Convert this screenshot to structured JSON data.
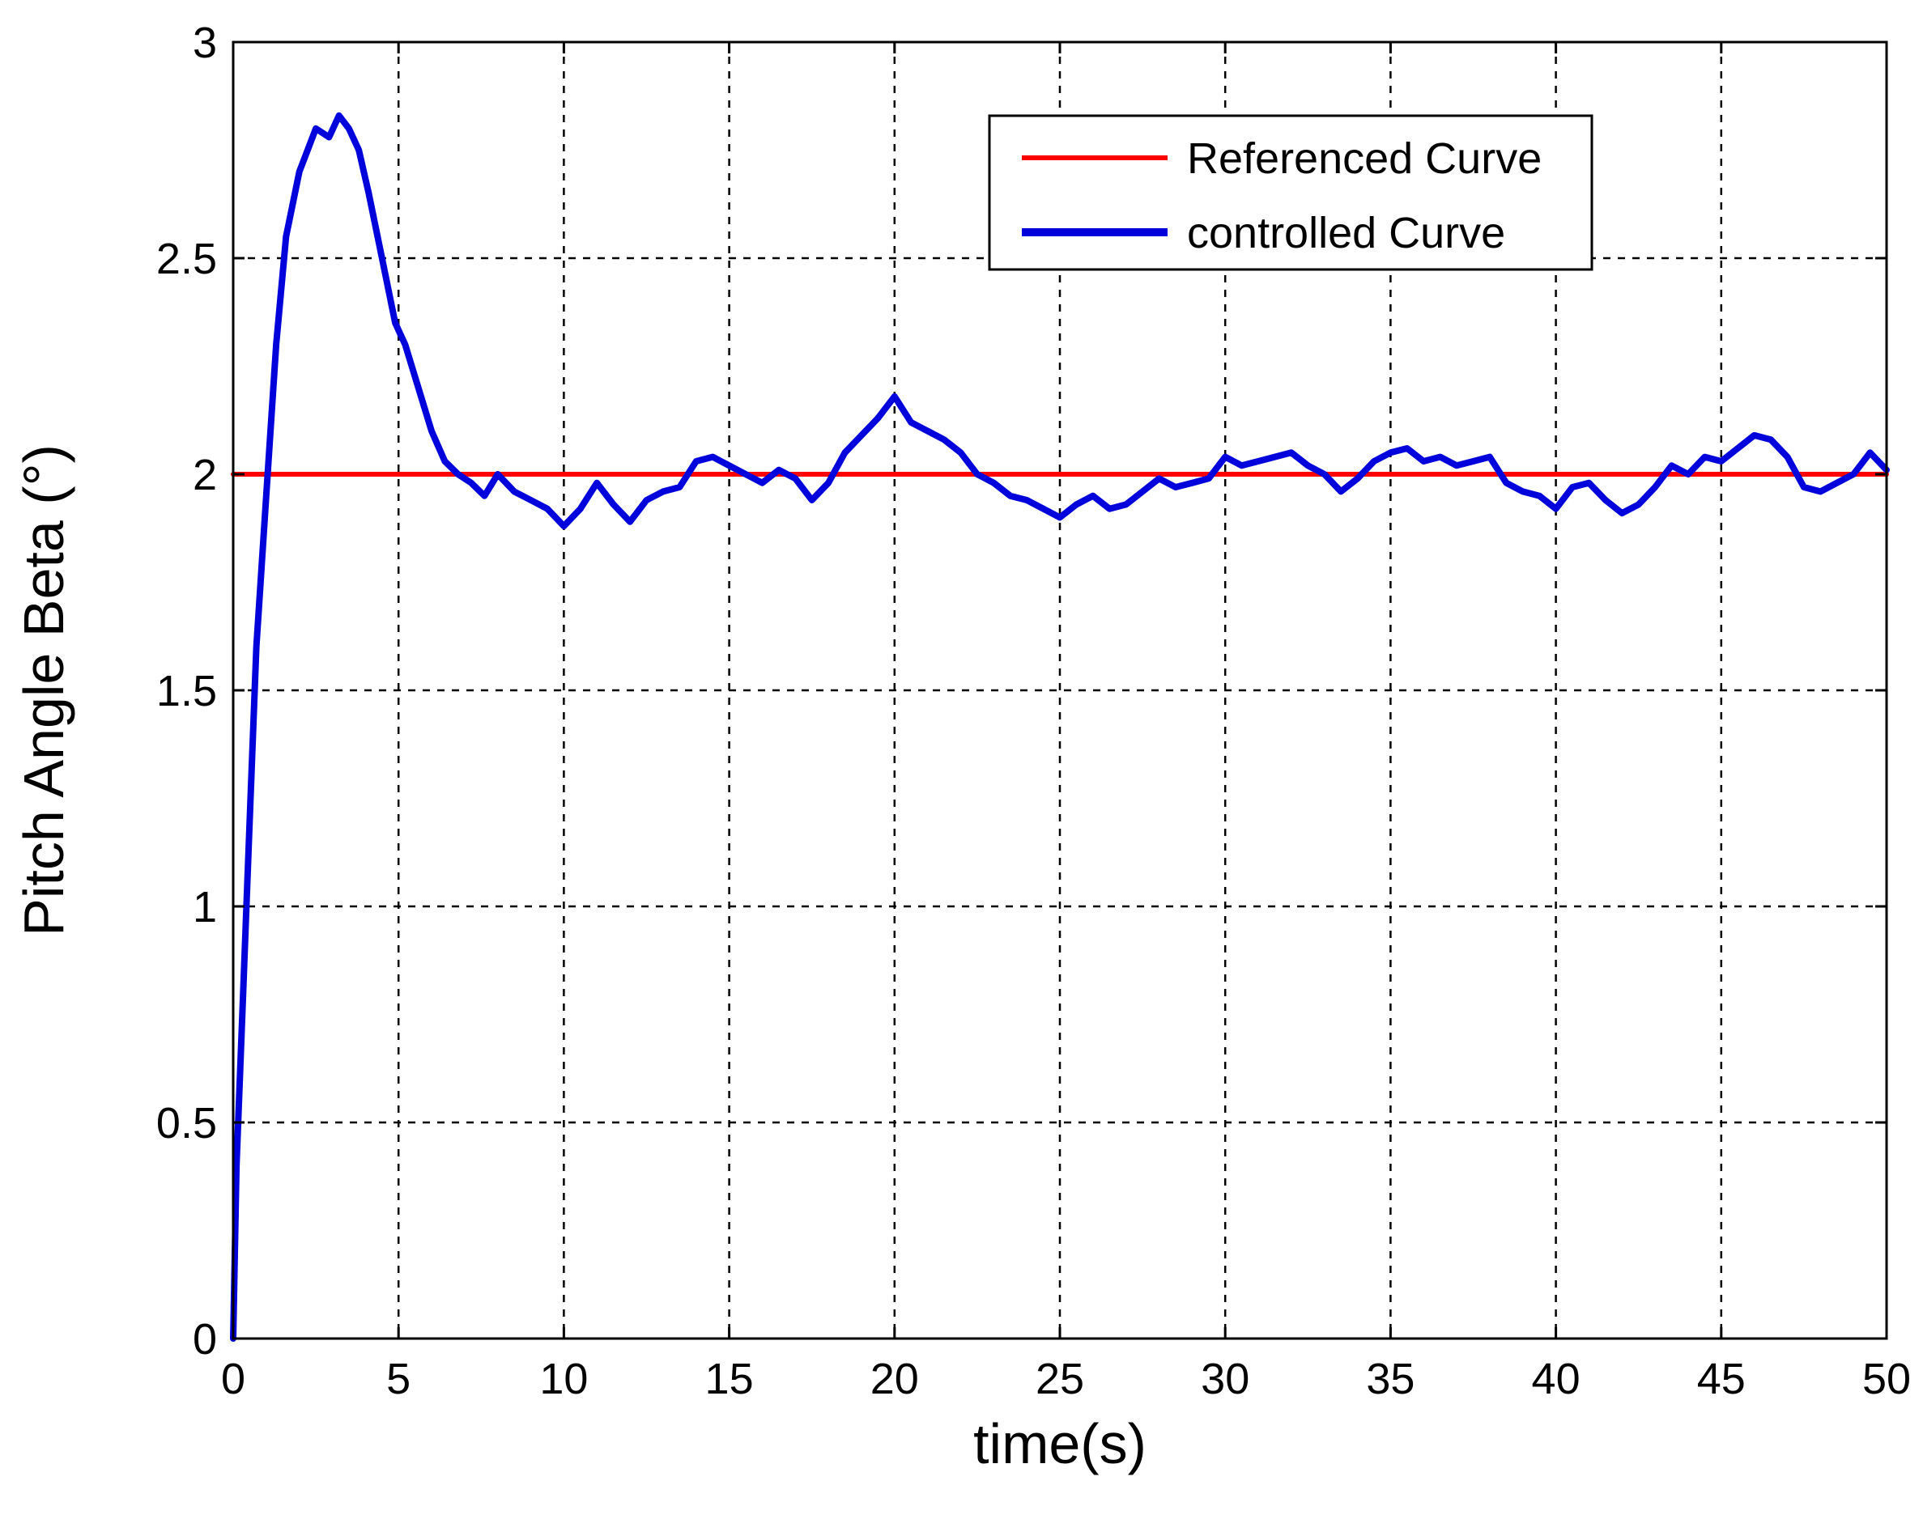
{
  "chart_data": {
    "type": "line",
    "title": "",
    "xlabel": "time(s)",
    "ylabel": "Pitch Angle Beta (°)",
    "xlim": [
      0,
      50
    ],
    "ylim": [
      0,
      3
    ],
    "xticks": [
      0,
      5,
      10,
      15,
      20,
      25,
      30,
      35,
      40,
      45,
      50
    ],
    "xtick_labels": [
      "0",
      "5",
      "10",
      "15",
      "20",
      "25",
      "30",
      "35",
      "40",
      "45",
      "50"
    ],
    "yticks": [
      0,
      0.5,
      1,
      1.5,
      2,
      2.5,
      3
    ],
    "ytick_labels": [
      "0",
      "0.5",
      "1",
      "1.5",
      "2",
      "2.5",
      "3"
    ],
    "grid": true,
    "legend_position": "top-right",
    "series": [
      {
        "name": "Referenced Curve",
        "color": "#ff0000",
        "x": [
          0,
          50
        ],
        "y": [
          2.0,
          2.0
        ]
      },
      {
        "name": "controlled Curve",
        "color": "#0000dd",
        "x": [
          0,
          0.1,
          0.3,
          0.5,
          0.7,
          1.0,
          1.3,
          1.6,
          2.0,
          2.5,
          2.9,
          3.2,
          3.5,
          3.8,
          4.1,
          4.5,
          4.9,
          5.2,
          5.6,
          6.0,
          6.4,
          6.8,
          7.2,
          7.6,
          8.0,
          8.5,
          9.0,
          9.5,
          10.0,
          10.5,
          11.0,
          11.5,
          12.0,
          12.5,
          13.0,
          13.5,
          14.0,
          14.5,
          15.0,
          15.5,
          16.0,
          16.5,
          17.0,
          17.5,
          18.0,
          18.5,
          19.0,
          19.5,
          20.0,
          20.5,
          21.0,
          21.5,
          22.0,
          22.5,
          23.0,
          23.5,
          24.0,
          24.5,
          25.0,
          25.5,
          26.0,
          26.5,
          27.0,
          27.5,
          28.0,
          28.5,
          29.0,
          29.5,
          30.0,
          30.5,
          31.0,
          31.5,
          32.0,
          32.5,
          33.0,
          33.5,
          34.0,
          34.5,
          35.0,
          35.5,
          36.0,
          36.5,
          37.0,
          37.5,
          38.0,
          38.5,
          39.0,
          39.5,
          40.0,
          40.5,
          41.0,
          41.5,
          42.0,
          42.5,
          43.0,
          43.5,
          44.0,
          44.5,
          45.0,
          45.5,
          46.0,
          46.5,
          47.0,
          47.5,
          48.0,
          48.5,
          49.0,
          49.5,
          50.0
        ],
        "y": [
          0,
          0.4,
          0.8,
          1.2,
          1.6,
          1.95,
          2.3,
          2.55,
          2.7,
          2.8,
          2.78,
          2.83,
          2.8,
          2.75,
          2.65,
          2.5,
          2.35,
          2.3,
          2.2,
          2.1,
          2.03,
          2.0,
          1.98,
          1.95,
          2.0,
          1.96,
          1.94,
          1.92,
          1.88,
          1.92,
          1.98,
          1.93,
          1.89,
          1.94,
          1.96,
          1.97,
          2.03,
          2.04,
          2.02,
          2.0,
          1.98,
          2.01,
          1.99,
          1.94,
          1.98,
          2.05,
          2.09,
          2.13,
          2.18,
          2.12,
          2.1,
          2.08,
          2.05,
          2.0,
          1.98,
          1.95,
          1.94,
          1.92,
          1.9,
          1.93,
          1.95,
          1.92,
          1.93,
          1.96,
          1.99,
          1.97,
          1.98,
          1.99,
          2.04,
          2.02,
          2.03,
          2.04,
          2.05,
          2.02,
          2.0,
          1.96,
          1.99,
          2.03,
          2.05,
          2.06,
          2.03,
          2.04,
          2.02,
          2.03,
          2.04,
          1.98,
          1.96,
          1.95,
          1.92,
          1.97,
          1.98,
          1.94,
          1.91,
          1.93,
          1.97,
          2.02,
          2.0,
          2.04,
          2.03,
          2.06,
          2.09,
          2.08,
          2.04,
          1.97,
          1.96,
          1.98,
          2.0,
          2.05,
          2.01
        ]
      }
    ]
  }
}
